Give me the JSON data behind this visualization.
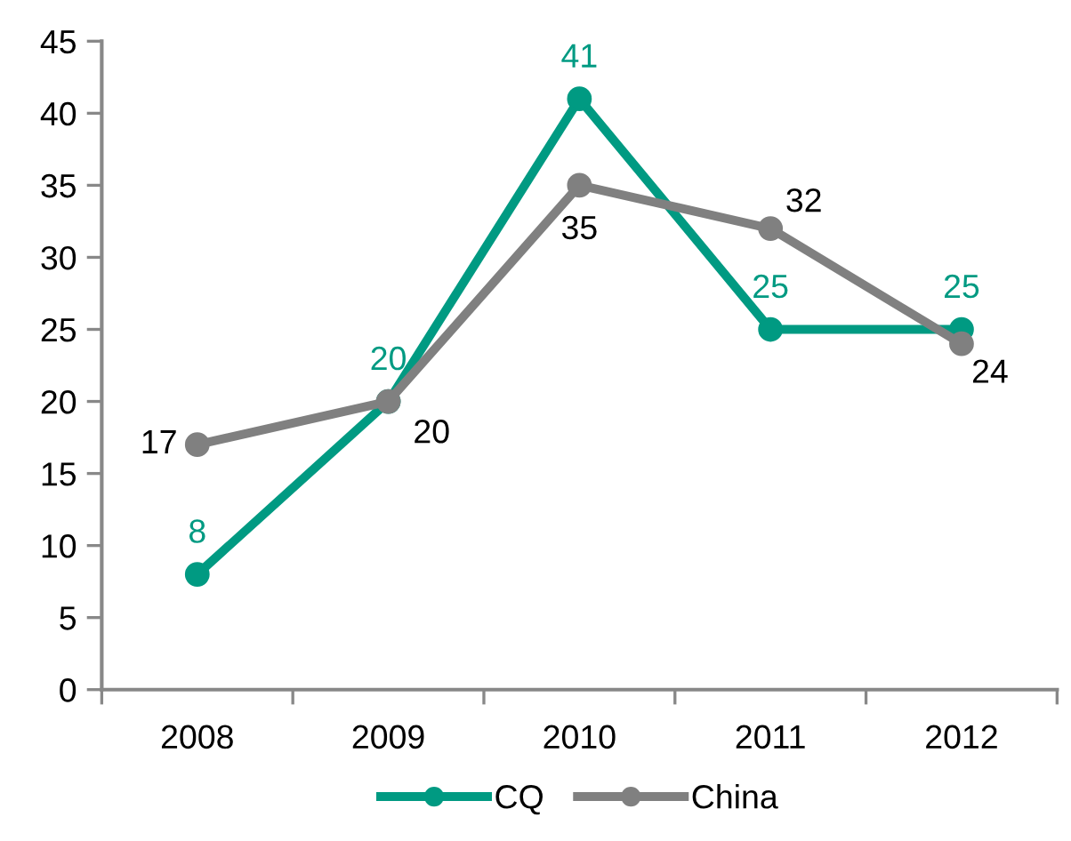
{
  "chart_data": {
    "type": "line",
    "categories": [
      "2008",
      "2009",
      "2010",
      "2011",
      "2012"
    ],
    "series": [
      {
        "name": "CQ",
        "color": "#009a82",
        "values": [
          8,
          20,
          41,
          25,
          25
        ]
      },
      {
        "name": "China",
        "color": "#808080",
        "values": [
          17,
          20,
          35,
          32,
          24
        ]
      }
    ],
    "ylim": [
      0,
      45
    ],
    "yticks": [
      0,
      5,
      10,
      15,
      20,
      25,
      30,
      35,
      40,
      45
    ],
    "data_labels": true,
    "grid": false,
    "legend": "bottom",
    "marker": "circle",
    "line_style": "solid"
  }
}
